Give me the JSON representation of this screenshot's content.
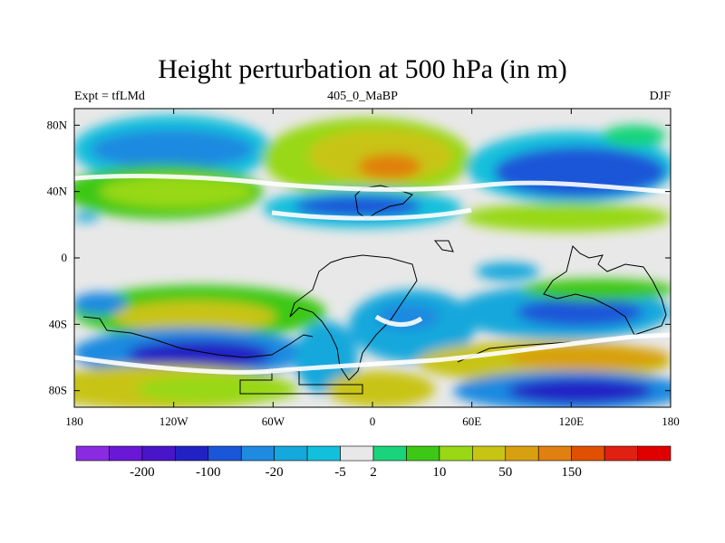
{
  "chart_data": {
    "type": "heatmap",
    "title": "Height perturbation at 500 hPa (in m)",
    "left_label": "Expt = tfLMd",
    "center_label": "405_0_MaBP",
    "right_label": "DJF",
    "x_ticks": [
      "180",
      "120W",
      "60W",
      "0",
      "60E",
      "120E",
      "180"
    ],
    "y_ticks": [
      "80N",
      "40N",
      "0",
      "40S",
      "80S"
    ],
    "xlim": [
      -180,
      180
    ],
    "ylim": [
      -90,
      90
    ],
    "x_tick_values": [
      -180,
      -120,
      -60,
      0,
      60,
      120,
      180
    ],
    "y_tick_values": [
      80,
      40,
      0,
      -40,
      -80
    ],
    "colorbar": {
      "colors": [
        "#8a2be2",
        "#6a17d6",
        "#4816c8",
        "#2222c4",
        "#1a56d8",
        "#1e8ae0",
        "#14a8dc",
        "#12c0dc",
        "#e8e8e8",
        "#19d47a",
        "#3cc814",
        "#98d814",
        "#c8c414",
        "#d8a010",
        "#e08010",
        "#e05000",
        "#e02010",
        "#e00000"
      ],
      "labels": [
        "-200",
        "-100",
        "-20",
        "-5",
        "2",
        "10",
        "50",
        "150"
      ]
    }
  }
}
